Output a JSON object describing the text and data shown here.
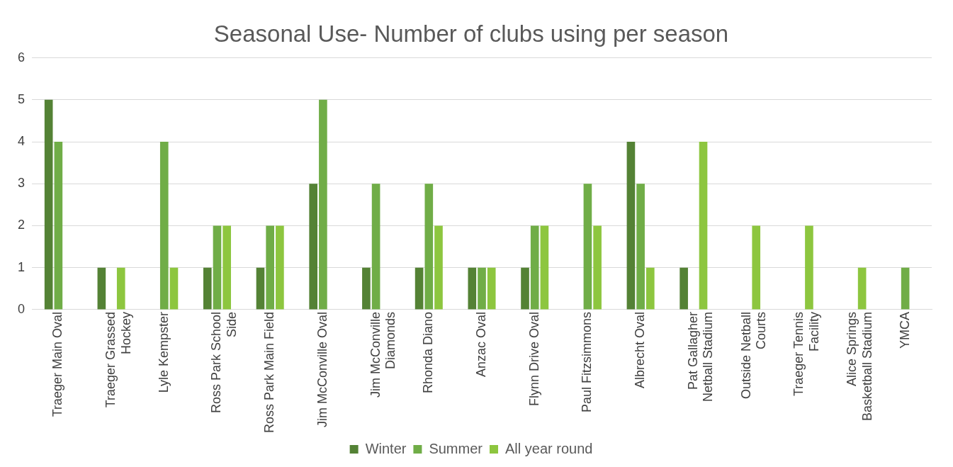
{
  "chart_data": {
    "type": "bar",
    "title": "Seasonal Use- Number of clubs using per season",
    "categories": [
      "Traeger Main Oval",
      "Traeger Grassed Hockey",
      "Lyle Kempster",
      "Ross Park School Side",
      "Ross Park Main Field",
      "Jim McConville Oval",
      "Jim McConville Diamonds",
      "Rhonda Diano",
      "Anzac Oval",
      "Flynn Drive Oval",
      "Paul Fitzsimmons",
      "Albrecht Oval",
      "Pat Gallagher Netball Stadium",
      "Outside Netball Courts",
      "Traeger Tennis Facility",
      "Alice Springs Basketball Stadium",
      "YMCA"
    ],
    "series": [
      {
        "name": "Winter",
        "color": "#548235",
        "values": [
          5,
          1,
          null,
          1,
          1,
          3,
          1,
          1,
          1,
          1,
          null,
          4,
          1,
          null,
          null,
          null,
          null
        ]
      },
      {
        "name": "Summer",
        "color": "#70ad47",
        "values": [
          4,
          null,
          4,
          2,
          2,
          5,
          3,
          3,
          1,
          2,
          3,
          3,
          null,
          null,
          null,
          null,
          1
        ]
      },
      {
        "name": "All year round",
        "color": "#8dc63f",
        "values": [
          null,
          1,
          1,
          2,
          2,
          null,
          null,
          2,
          1,
          2,
          2,
          1,
          4,
          2,
          2,
          1,
          null
        ]
      }
    ],
    "ylim": [
      0,
      6
    ],
    "yticks": [
      0,
      1,
      2,
      3,
      4,
      5,
      6
    ],
    "grid": "y",
    "legend": "bottom"
  }
}
